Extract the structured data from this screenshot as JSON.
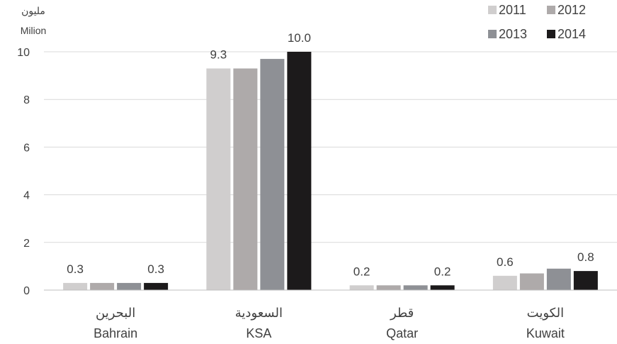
{
  "chart_data": {
    "type": "bar",
    "unit_label_ar": "مليون",
    "unit_label_en": "Milion",
    "categories": [
      {
        "ar": "البحرين",
        "en": "Bahrain"
      },
      {
        "ar": "السعودية",
        "en": "KSA"
      },
      {
        "ar": "قطر",
        "en": "Qatar"
      },
      {
        "ar": "الكويت",
        "en": "Kuwait"
      }
    ],
    "series": [
      {
        "name": "2011",
        "color": "#d0cece",
        "values": [
          0.3,
          9.3,
          0.2,
          0.6
        ]
      },
      {
        "name": "2012",
        "color": "#aeaaaa",
        "values": [
          0.3,
          9.3,
          0.2,
          0.7
        ]
      },
      {
        "name": "2013",
        "color": "#8e9095",
        "values": [
          0.3,
          9.7,
          0.2,
          0.9
        ]
      },
      {
        "name": "2014",
        "color": "#1c1a1b",
        "values": [
          0.3,
          10.0,
          0.2,
          0.8
        ]
      }
    ],
    "data_labels": [
      {
        "category": 0,
        "series": 0,
        "text": "0.3"
      },
      {
        "category": 0,
        "series": 3,
        "text": "0.3"
      },
      {
        "category": 1,
        "series": 0,
        "text": "9.3"
      },
      {
        "category": 1,
        "series": 3,
        "text": "10.0"
      },
      {
        "category": 2,
        "series": 0,
        "text": "0.2"
      },
      {
        "category": 2,
        "series": 3,
        "text": "0.2"
      },
      {
        "category": 3,
        "series": 0,
        "text": "0.6"
      },
      {
        "category": 3,
        "series": 3,
        "text": "0.8"
      }
    ],
    "ylim": [
      0,
      10
    ],
    "yticks": [
      0,
      2,
      4,
      6,
      8,
      10
    ],
    "grid": true,
    "legend_position": "top-right"
  }
}
